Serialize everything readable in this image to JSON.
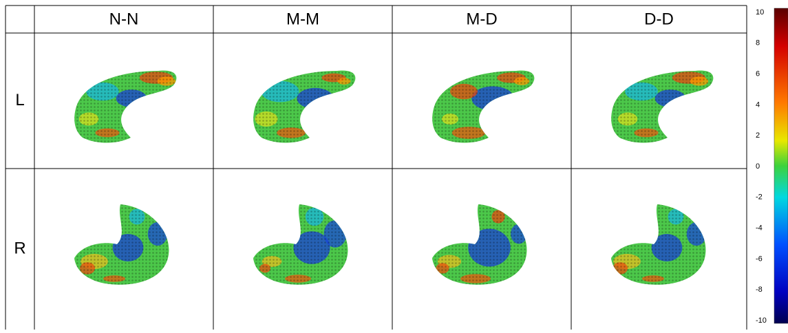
{
  "table": {
    "columns": [
      "N-N",
      "M-M",
      "M-D",
      "D-D"
    ],
    "rows": [
      "L",
      "R"
    ]
  },
  "colorbar": {
    "ticks": [
      "10",
      "8",
      "6",
      "4",
      "2",
      "0",
      "-2",
      "-4",
      "-6",
      "-8",
      "-10"
    ]
  }
}
